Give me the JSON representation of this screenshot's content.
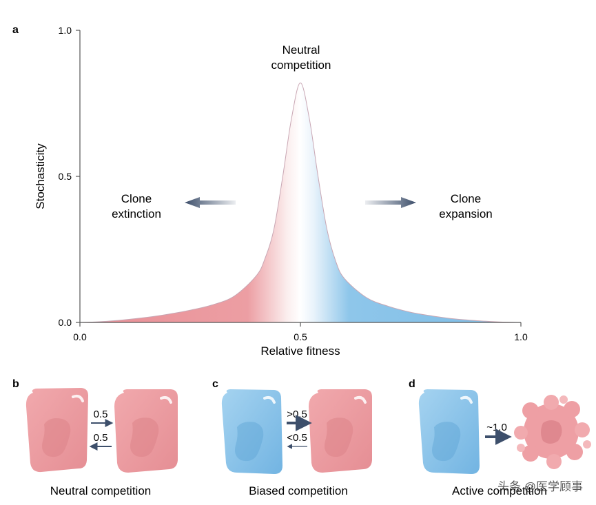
{
  "panels": {
    "a": {
      "letter": "a"
    },
    "b": {
      "letter": "b",
      "rate_top": "0.5",
      "rate_bottom": "0.5",
      "caption": "Neutral competition"
    },
    "c": {
      "letter": "c",
      "rate_top": ">0.5",
      "rate_bottom": "<0.5",
      "caption": "Biased competition"
    },
    "d": {
      "letter": "d",
      "rate": "~1.0",
      "caption": "Active competition"
    }
  },
  "chart_data": {
    "type": "area",
    "xlabel": "Relative fitness",
    "ylabel": "Stochasticity",
    "xlim": [
      0,
      1
    ],
    "ylim": [
      0,
      1
    ],
    "x_ticks": [
      "0.0",
      "0.5",
      "1.0"
    ],
    "y_ticks": [
      "0.0",
      "0.5",
      "1.0"
    ],
    "grid": false,
    "series": [
      {
        "x": [
          0,
          0.05,
          0.1,
          0.15,
          0.2,
          0.25,
          0.3,
          0.35,
          0.4,
          0.42,
          0.44,
          0.46,
          0.48,
          0.5,
          0.52,
          0.54,
          0.56,
          0.58,
          0.6,
          0.65,
          0.7,
          0.75,
          0.8,
          0.85,
          0.9,
          0.95,
          1.0
        ],
        "y": [
          0,
          0.003,
          0.009,
          0.017,
          0.028,
          0.042,
          0.06,
          0.09,
          0.16,
          0.22,
          0.32,
          0.5,
          0.7,
          0.82,
          0.7,
          0.5,
          0.32,
          0.21,
          0.15,
          0.085,
          0.055,
          0.035,
          0.022,
          0.012,
          0.006,
          0.002,
          0
        ]
      }
    ],
    "annotations": {
      "peak_line1": "Neutral",
      "peak_line2": "competition",
      "left_line1": "Clone",
      "left_line2": "extinction",
      "right_line1": "Clone",
      "right_line2": "expansion"
    }
  },
  "watermark": "头条 @医学顾事",
  "colors": {
    "pink": "#e8959b",
    "pink_light": "#f4b9bc",
    "blue": "#7fbde6",
    "blue_light": "#b7dcf3",
    "arrow": "#3d4f6b",
    "axis": "#555555"
  }
}
